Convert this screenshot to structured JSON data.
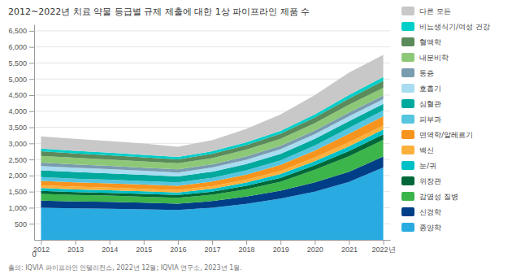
{
  "chart_data": {
    "type": "area",
    "stacked": true,
    "title": "2012~2022년 치료 약물 등급별 규제 제출에 대한 1상 파이프라인 제품 수",
    "source": "출의: IQVIA 파이프라인 인텔리전스, 2022년 12월; IQVIA 연구소, 2023년 1월.",
    "annotations": [
      "0"
    ],
    "x": [
      2012,
      2013,
      2014,
      2015,
      2016,
      2017,
      2018,
      2019,
      2020,
      2021,
      2022
    ],
    "series": [
      {
        "name": "종양학",
        "color": "#29ABE2",
        "values": [
          1000,
          980,
          970,
          950,
          930,
          1000,
          1120,
          1280,
          1500,
          1800,
          2250
        ]
      },
      {
        "name": "신경학",
        "color": "#003F87",
        "values": [
          220,
          215,
          210,
          205,
          195,
          205,
          225,
          250,
          290,
          320,
          340
        ]
      },
      {
        "name": "감염성 질병",
        "color": "#3CB54A",
        "values": [
          210,
          200,
          195,
          188,
          185,
          200,
          230,
          280,
          390,
          480,
          520
        ]
      },
      {
        "name": "위장관",
        "color": "#006838",
        "values": [
          95,
          92,
          88,
          85,
          84,
          92,
          105,
          120,
          140,
          162,
          170
        ]
      },
      {
        "name": "눈/귀",
        "color": "#00C0C7",
        "values": [
          85,
          83,
          82,
          80,
          80,
          88,
          100,
          115,
          128,
          145,
          155
        ]
      },
      {
        "name": "백신",
        "color": "#FBB03B",
        "values": [
          85,
          83,
          80,
          78,
          75,
          82,
          88,
          95,
          110,
          130,
          115
        ]
      },
      {
        "name": "면역학/알레르기",
        "color": "#F7941D",
        "values": [
          140,
          138,
          135,
          132,
          130,
          145,
          162,
          190,
          215,
          265,
          290
        ]
      },
      {
        "name": "피부과",
        "color": "#56C5E0",
        "values": [
          115,
          113,
          112,
          110,
          108,
          118,
          130,
          142,
          158,
          178,
          188
        ]
      },
      {
        "name": "심혈관",
        "color": "#00A99D",
        "values": [
          210,
          205,
          198,
          192,
          185,
          190,
          196,
          202,
          210,
          212,
          200
        ]
      },
      {
        "name": "호흡기",
        "color": "#A8DCF0",
        "values": [
          135,
          132,
          129,
          126,
          122,
          128,
          135,
          142,
          148,
          153,
          148
        ]
      },
      {
        "name": "통증",
        "color": "#7A9CB0",
        "values": [
          108,
          105,
          102,
          100,
          97,
          100,
          105,
          108,
          112,
          115,
          112
        ]
      },
      {
        "name": "내분비학",
        "color": "#8DC878",
        "values": [
          210,
          205,
          198,
          194,
          190,
          196,
          208,
          218,
          230,
          242,
          242
        ]
      },
      {
        "name": "혈액학",
        "color": "#5B8A5B",
        "values": [
          140,
          136,
          132,
          128,
          124,
          132,
          142,
          155,
          172,
          192,
          212
        ]
      },
      {
        "name": "비뇨생식기/여성 건강",
        "color": "#00CEC8",
        "values": [
          82,
          80,
          78,
          75,
          73,
          78,
          85,
          92,
          100,
          112,
          118
        ]
      },
      {
        "name": "다른 모든",
        "color": "#C8C8C8",
        "values": [
          380,
          375,
          365,
          350,
          320,
          346,
          419,
          511,
          597,
          694,
          690
        ]
      }
    ],
    "xlim": [
      2011.8,
      2022.2
    ],
    "xticks": [
      2012,
      2013,
      2014,
      2015,
      2016,
      2017,
      2018,
      2019,
      2020,
      2021,
      {
        "value": 2022,
        "label": "2022년"
      }
    ],
    "ylim": [
      0,
      6700
    ],
    "yticks": [
      500,
      {
        "value": 1000,
        "label": "1,000"
      },
      {
        "value": 1500,
        "label": "1,500"
      },
      {
        "value": 2000,
        "label": "2,000"
      },
      {
        "value": 2500,
        "label": "2,500"
      },
      {
        "value": 3000,
        "label": "3,000"
      },
      {
        "value": 3500,
        "label": "3,500"
      },
      {
        "value": 4000,
        "label": "4,000"
      },
      {
        "value": 4500,
        "label": "4,500"
      },
      {
        "value": 5000,
        "label": "5,000"
      },
      {
        "value": 5500,
        "label": "5,500"
      },
      {
        "value": 6000,
        "label": "6,000"
      },
      {
        "value": 6500,
        "label": "6,500"
      }
    ],
    "grid": true,
    "legend": "right"
  }
}
